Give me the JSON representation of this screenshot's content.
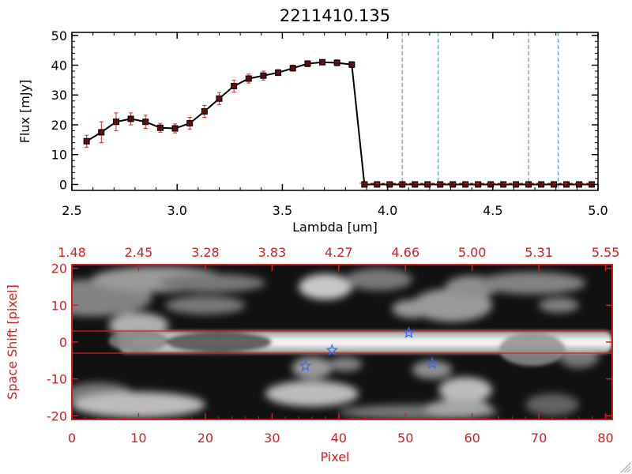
{
  "chart_data": [
    {
      "type": "line",
      "title": "2211410.135",
      "xlabel": "Lambda [um]",
      "ylabel": "Flux [mJy]",
      "xlim": [
        2.5,
        5.0
      ],
      "ylim": [
        -2,
        51
      ],
      "xticks": [
        "2.5",
        "3.0",
        "3.5",
        "4.0",
        "4.5",
        "5.0"
      ],
      "xtick_values": [
        2.5,
        3.0,
        3.5,
        4.0,
        4.5,
        5.0
      ],
      "yticks": [
        "0",
        "10",
        "20",
        "30",
        "40",
        "50"
      ],
      "ytick_values": [
        0,
        10,
        20,
        30,
        40,
        50
      ],
      "series": [
        {
          "name": "flux",
          "color": "#000000",
          "x": [
            2.57,
            2.64,
            2.71,
            2.78,
            2.85,
            2.92,
            2.99,
            3.06,
            3.13,
            3.2,
            3.27,
            3.34,
            3.41,
            3.48,
            3.55,
            3.62,
            3.69,
            3.76,
            3.83,
            3.89,
            3.95,
            4.01,
            4.07,
            4.13,
            4.19,
            4.25,
            4.31,
            4.37,
            4.43,
            4.49,
            4.55,
            4.61,
            4.67,
            4.73,
            4.79,
            4.85,
            4.91,
            4.97
          ],
          "y": [
            14.5,
            17.5,
            21.0,
            22.0,
            21.0,
            19.0,
            18.8,
            20.5,
            24.5,
            28.8,
            33.0,
            35.5,
            36.5,
            37.5,
            39.0,
            40.5,
            41.0,
            40.8,
            40.2,
            0,
            0,
            0,
            0,
            0,
            0,
            0,
            0,
            0,
            0,
            0,
            0,
            0,
            0,
            0,
            0,
            0,
            0,
            0
          ],
          "yerr": [
            2.0,
            3.5,
            3.0,
            2.0,
            2.2,
            1.5,
            1.5,
            2.0,
            2.0,
            2.0,
            2.0,
            1.5,
            1.5,
            1.0,
            1.0,
            1.0,
            0.8,
            1.0,
            1.0,
            0,
            0,
            0,
            0,
            0,
            0,
            0,
            0,
            0,
            0,
            0,
            0,
            0,
            0,
            0,
            0,
            0,
            0,
            0
          ]
        }
      ],
      "vlines": [
        4.07,
        4.24,
        4.67,
        4.81
      ],
      "vline_color": "#3399cc"
    },
    {
      "type": "heatmap",
      "xlabel": "Pixel",
      "ylabel": "Space Shift [pixel]",
      "xlim": [
        0,
        81
      ],
      "ylim": [
        -21,
        21
      ],
      "xticks": [
        "0",
        "10",
        "20",
        "30",
        "40",
        "50",
        "60",
        "70",
        "80"
      ],
      "xtick_values": [
        0,
        10,
        20,
        30,
        40,
        50,
        60,
        70,
        80
      ],
      "yticks": [
        "-20",
        "-10",
        "0",
        "10",
        "20"
      ],
      "ytick_values": [
        -20,
        -10,
        0,
        10,
        20
      ],
      "top_axis_ticks": [
        "1.48",
        "2.45",
        "3.28",
        "3.83",
        "4.27",
        "4.66",
        "5.00",
        "5.31",
        "5.55"
      ],
      "axis_color": "#cc2222",
      "hlines": [
        3,
        -3
      ],
      "stars": [
        {
          "x": 50.5,
          "y": 2.5
        },
        {
          "x": 39.0,
          "y": -2.2
        },
        {
          "x": 35.0,
          "y": -6.5
        },
        {
          "x": 54.0,
          "y": -5.8
        }
      ],
      "star_color": "#3366ff",
      "blobs": [
        {
          "x": 3,
          "y": 12,
          "rx": 9,
          "ry": 5,
          "v": 0.45
        },
        {
          "x": 13,
          "y": 17,
          "rx": 10,
          "ry": 3.5,
          "v": 0.55
        },
        {
          "x": 20,
          "y": 10,
          "rx": 6,
          "ry": 2.5,
          "v": 0.4
        },
        {
          "x": 21,
          "y": 16,
          "rx": 8,
          "ry": 2.5,
          "v": 0.4
        },
        {
          "x": 38,
          "y": 15,
          "rx": 4,
          "ry": 3.5,
          "v": 0.75
        },
        {
          "x": 46,
          "y": 17,
          "rx": 5,
          "ry": 3,
          "v": 0.4
        },
        {
          "x": 51,
          "y": 9,
          "rx": 3,
          "ry": 2.5,
          "v": 0.55
        },
        {
          "x": 57,
          "y": 10,
          "rx": 6,
          "ry": 4.5,
          "v": 0.55
        },
        {
          "x": 60,
          "y": 15,
          "rx": 4,
          "ry": 3,
          "v": 0.5
        },
        {
          "x": 69,
          "y": 16,
          "rx": 8,
          "ry": 3,
          "v": 0.45
        },
        {
          "x": 73,
          "y": 10,
          "rx": 3,
          "ry": 2,
          "v": 0.45
        },
        {
          "x": 10,
          "y": 4.5,
          "rx": 4.5,
          "ry": 3.5,
          "v": 0.65
        },
        {
          "x": 36,
          "y": -7,
          "rx": 3,
          "ry": 3,
          "v": 0.55
        },
        {
          "x": 41,
          "y": -6,
          "rx": 2.5,
          "ry": 2,
          "v": 0.45
        },
        {
          "x": 54,
          "y": -7.5,
          "rx": 3,
          "ry": 2.5,
          "v": 0.5
        },
        {
          "x": 59,
          "y": -13,
          "rx": 4,
          "ry": 3.5,
          "v": 0.7
        },
        {
          "x": 4,
          "y": -14,
          "rx": 5,
          "ry": 3,
          "v": 0.4
        },
        {
          "x": 10,
          "y": -17,
          "rx": 10,
          "ry": 3.5,
          "v": 0.7
        },
        {
          "x": 36,
          "y": -14,
          "rx": 7,
          "ry": 3.5,
          "v": 0.7
        },
        {
          "x": 52,
          "y": -19,
          "rx": 12,
          "ry": 2,
          "v": 0.4
        },
        {
          "x": 58,
          "y": -18,
          "rx": 5,
          "ry": 2.5,
          "v": 0.6
        },
        {
          "x": 72,
          "y": -17,
          "rx": 4,
          "ry": 3,
          "v": 0.3
        },
        {
          "x": 76,
          "y": -4,
          "rx": 3,
          "ry": 3,
          "v": 0.4
        }
      ],
      "trace": {
        "y": 0,
        "x_start": 7,
        "x_end": 81,
        "width": 3.0
      },
      "trace_blobs": [
        {
          "x": 10,
          "y": 0.3,
          "rx": 4.5,
          "ry": 3.0,
          "v": 0.45
        },
        {
          "x": 22,
          "y": 0,
          "rx": 8,
          "ry": 2.8,
          "v": 0.2
        },
        {
          "x": 69,
          "y": -2,
          "rx": 5,
          "ry": 4.5,
          "v": 0.5
        }
      ]
    }
  ]
}
